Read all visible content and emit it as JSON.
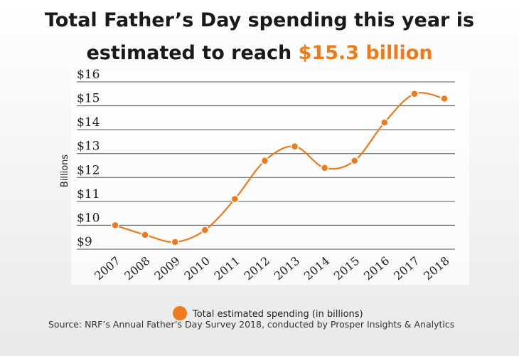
{
  "title": {
    "line1": "Total Father’s Day spending this year is",
    "line2_prefix": "estimated to reach ",
    "line2_highlight": "$15.3 billion"
  },
  "colors": {
    "accent": "#ee7a1a",
    "gridline": "#555555",
    "text": "#1a1a1a"
  },
  "chart_data": {
    "type": "line",
    "ylabel": "Billions",
    "ylim": [
      9,
      16
    ],
    "yticks": [
      "$9",
      "$10",
      "$11",
      "$12",
      "$13",
      "$14",
      "$15",
      "$16"
    ],
    "categories": [
      "2007",
      "2008",
      "2009",
      "2010",
      "2011",
      "2012",
      "2013",
      "2014",
      "2015",
      "2016",
      "2017",
      "2018"
    ],
    "series": [
      {
        "name": "Total estimated spending (in billions)",
        "values": [
          10.0,
          9.6,
          9.3,
          9.8,
          11.1,
          12.7,
          13.3,
          12.4,
          12.7,
          14.3,
          15.5,
          15.3
        ]
      }
    ],
    "grid": true,
    "smooth": true,
    "legend_position": "bottom-center"
  },
  "source": "Source: NRF’s Annual Father’s Day Survey 2018, conducted by Prosper Insights & Analytics"
}
